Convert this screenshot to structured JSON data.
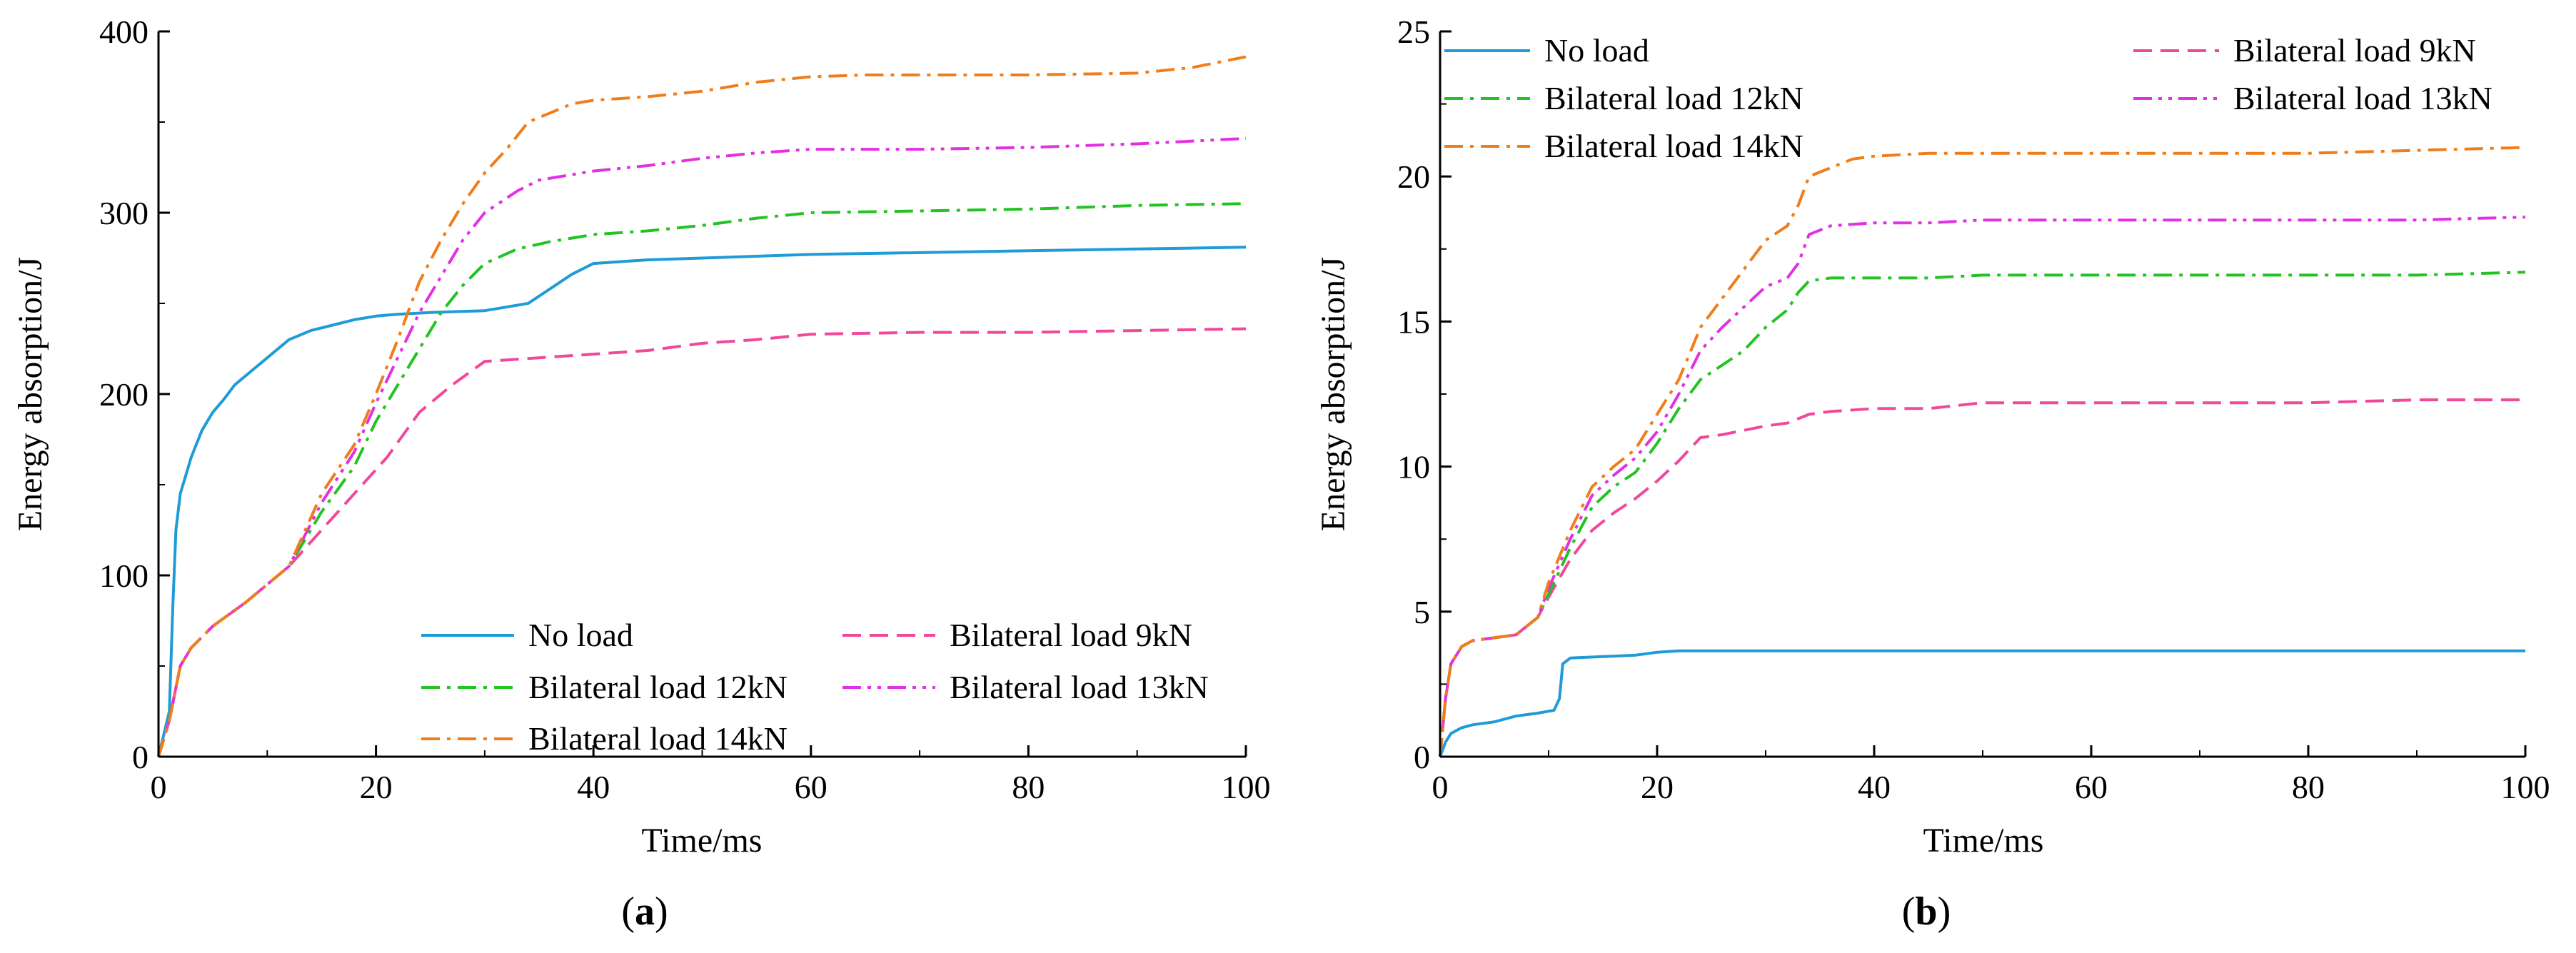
{
  "chart_data": [
    {
      "type": "line",
      "panel_label": "(a)",
      "xlabel": "Time/ms",
      "ylabel": "Energy absorption/J",
      "xlim": [
        0,
        100
      ],
      "ylim": [
        0,
        400
      ],
      "xticks": [
        "0",
        "20",
        "40",
        "60",
        "80",
        "100"
      ],
      "yticks": [
        "0",
        "100",
        "200",
        "300",
        "400"
      ],
      "legend_position": "bottom-right",
      "legend_columns": 2,
      "series": [
        {
          "name": "No load",
          "color": "#1f9bd7",
          "style": "solid",
          "x": [
            0,
            1,
            1.3,
            1.6,
            2,
            3,
            4,
            5,
            6,
            7,
            8,
            10,
            12,
            14,
            16,
            18,
            20,
            22,
            25,
            30,
            34,
            36,
            38,
            40,
            45,
            50,
            60,
            70,
            80,
            90,
            100
          ],
          "y": [
            0,
            25,
            80,
            125,
            145,
            165,
            180,
            190,
            197,
            205,
            210,
            220,
            230,
            235,
            238,
            241,
            243,
            244,
            245,
            246,
            250,
            258,
            266,
            272,
            274,
            275,
            277,
            278,
            279,
            280,
            281
          ]
        },
        {
          "name": "Bilateral load 9kN",
          "color": "#f0489b",
          "style": "dash",
          "x": [
            0,
            1,
            2,
            3,
            5,
            8,
            10,
            12,
            15,
            18,
            21,
            24,
            27,
            30,
            35,
            40,
            45,
            50,
            55,
            60,
            70,
            80,
            90,
            100
          ],
          "y": [
            0,
            20,
            50,
            60,
            72,
            85,
            95,
            105,
            125,
            145,
            165,
            190,
            205,
            218,
            220,
            222,
            224,
            228,
            230,
            233,
            234,
            234,
            235,
            236
          ]
        },
        {
          "name": "Bilateral load 12kN",
          "color": "#22c322",
          "style": "dashdot",
          "x": [
            0,
            1,
            2,
            3,
            5,
            8,
            10,
            12,
            15,
            18,
            20,
            22,
            24,
            26,
            28,
            30,
            33,
            36,
            40,
            45,
            50,
            55,
            60,
            70,
            80,
            90,
            100
          ],
          "y": [
            0,
            20,
            50,
            60,
            72,
            85,
            95,
            105,
            135,
            160,
            185,
            205,
            225,
            245,
            260,
            272,
            280,
            284,
            288,
            290,
            293,
            297,
            300,
            301,
            302,
            304,
            305
          ]
        },
        {
          "name": "Bilateral load 13kN",
          "color": "#e231e2",
          "style": "dashdotdot",
          "x": [
            0,
            1,
            2,
            3,
            5,
            8,
            10,
            12,
            15,
            18,
            20,
            22,
            24,
            26,
            28,
            30,
            33,
            35,
            38,
            40,
            45,
            50,
            55,
            60,
            70,
            80,
            90,
            100
          ],
          "y": [
            0,
            20,
            50,
            60,
            72,
            85,
            95,
            105,
            140,
            168,
            195,
            220,
            245,
            265,
            285,
            300,
            312,
            318,
            321,
            323,
            326,
            330,
            333,
            335,
            335,
            336,
            338,
            341
          ]
        },
        {
          "name": "Bilateral load 14kN",
          "color": "#f07d1a",
          "style": "dashdot",
          "x": [
            0,
            1,
            2,
            3,
            5,
            8,
            10,
            12,
            15,
            18,
            20,
            22,
            24,
            26,
            28,
            30,
            32,
            34,
            36,
            38,
            40,
            45,
            50,
            55,
            60,
            65,
            70,
            80,
            90,
            95,
            100
          ],
          "y": [
            0,
            20,
            50,
            60,
            72,
            85,
            95,
            105,
            145,
            172,
            200,
            230,
            262,
            285,
            305,
            322,
            335,
            350,
            355,
            360,
            362,
            364,
            367,
            372,
            375,
            376,
            376,
            376,
            377,
            380,
            386
          ]
        }
      ],
      "legend_order": [
        0,
        1,
        2,
        3,
        4
      ]
    },
    {
      "type": "line",
      "panel_label": "(b)",
      "xlabel": "Time/ms",
      "ylabel": "Energy absorption/J",
      "xlim": [
        0,
        100
      ],
      "ylim": [
        0,
        25
      ],
      "xticks": [
        "0",
        "20",
        "40",
        "60",
        "80",
        "100"
      ],
      "yticks": [
        "0",
        "5",
        "10",
        "15",
        "20",
        "25"
      ],
      "legend_position": "top-left",
      "legend_columns": 2,
      "series": [
        {
          "name": "No load",
          "color": "#1f9bd7",
          "style": "solid",
          "x": [
            0,
            0.5,
            1,
            1.5,
            2,
            3,
            5,
            7,
            9,
            10.5,
            11,
            11.3,
            12,
            15,
            18,
            20,
            22,
            25,
            30,
            40,
            60,
            80,
            100
          ],
          "y": [
            0,
            0.5,
            0.8,
            0.9,
            1.0,
            1.1,
            1.2,
            1.4,
            1.5,
            1.6,
            2.0,
            3.2,
            3.4,
            3.45,
            3.5,
            3.6,
            3.65,
            3.65,
            3.65,
            3.65,
            3.65,
            3.65,
            3.65
          ]
        },
        {
          "name": "Bilateral load 9kN",
          "color": "#f0489b",
          "style": "dash",
          "x": [
            0,
            0.5,
            1,
            2,
            3,
            5,
            7,
            9,
            10,
            12,
            14,
            16,
            18,
            20,
            22,
            24,
            26,
            30,
            32,
            34,
            36,
            40,
            45,
            50,
            60,
            70,
            80,
            90,
            100
          ],
          "y": [
            0,
            2.0,
            3.2,
            3.8,
            4.0,
            4.1,
            4.2,
            4.8,
            5.5,
            6.8,
            7.8,
            8.4,
            8.9,
            9.5,
            10.2,
            11.0,
            11.1,
            11.4,
            11.5,
            11.8,
            11.9,
            12.0,
            12.0,
            12.2,
            12.2,
            12.2,
            12.2,
            12.3,
            12.3
          ]
        },
        {
          "name": "Bilateral load 12kN",
          "color": "#22c322",
          "style": "dashdot",
          "x": [
            0,
            0.5,
            1,
            2,
            3,
            5,
            7,
            9,
            10,
            12,
            14,
            16,
            18,
            20,
            22,
            24,
            26,
            28,
            30,
            32,
            33,
            34,
            36,
            40,
            45,
            50,
            60,
            70,
            80,
            90,
            100
          ],
          "y": [
            0,
            2.0,
            3.2,
            3.8,
            4.0,
            4.1,
            4.2,
            4.8,
            5.6,
            7.2,
            8.6,
            9.3,
            9.8,
            10.8,
            12.0,
            13.0,
            13.5,
            14.0,
            14.8,
            15.4,
            16.0,
            16.4,
            16.5,
            16.5,
            16.5,
            16.6,
            16.6,
            16.6,
            16.6,
            16.6,
            16.7
          ]
        },
        {
          "name": "Bilateral load 13kN",
          "color": "#e231e2",
          "style": "dashdotdot",
          "x": [
            0,
            0.5,
            1,
            2,
            3,
            5,
            7,
            9,
            10,
            12,
            14,
            16,
            18,
            20,
            22,
            24,
            26,
            28,
            30,
            32,
            33,
            34,
            36,
            40,
            45,
            50,
            60,
            70,
            80,
            90,
            100
          ],
          "y": [
            0,
            2.0,
            3.2,
            3.8,
            4.0,
            4.1,
            4.2,
            4.8,
            5.8,
            7.5,
            9.0,
            9.7,
            10.3,
            11.2,
            12.5,
            14.0,
            14.8,
            15.5,
            16.2,
            16.5,
            17.0,
            18.0,
            18.3,
            18.4,
            18.4,
            18.5,
            18.5,
            18.5,
            18.5,
            18.5,
            18.6
          ]
        },
        {
          "name": "Bilateral load 14kN",
          "color": "#f07d1a",
          "style": "dashdot",
          "x": [
            0,
            0.5,
            1,
            2,
            3,
            5,
            7,
            9,
            10,
            12,
            14,
            16,
            18,
            20,
            22,
            24,
            26,
            28,
            30,
            32,
            33,
            34,
            36,
            38,
            40,
            45,
            50,
            60,
            70,
            80,
            90,
            100
          ],
          "y": [
            0,
            2.0,
            3.2,
            3.8,
            4.0,
            4.1,
            4.2,
            4.8,
            6.0,
            7.8,
            9.3,
            10.0,
            10.6,
            11.8,
            13.0,
            14.8,
            15.8,
            16.8,
            17.8,
            18.3,
            19.0,
            20.0,
            20.3,
            20.6,
            20.7,
            20.8,
            20.8,
            20.8,
            20.8,
            20.8,
            20.9,
            21.0
          ]
        }
      ],
      "legend_order": [
        0,
        1,
        2,
        3,
        4
      ]
    }
  ]
}
